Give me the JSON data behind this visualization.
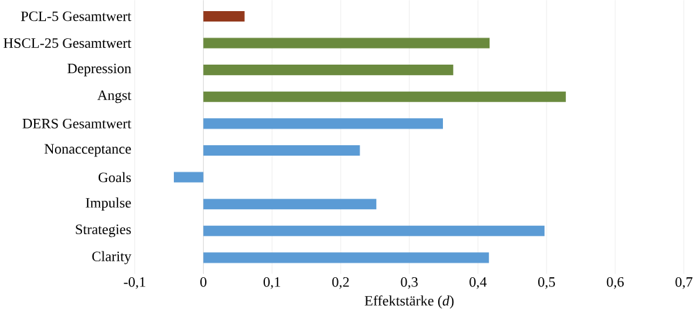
{
  "chart_data": {
    "type": "bar",
    "orientation": "horizontal",
    "xlabel": "Effektstärke (*d*)",
    "categories": [
      "PCL-5 Gesamtwert",
      "HSCL-25 Gesamtwert",
      "Depression",
      "Angst",
      "DERS Gesamtwert",
      "Nonacceptance",
      "Goals",
      "Impulse",
      "Strategies",
      "Clarity"
    ],
    "values": [
      0.06,
      0.417,
      0.364,
      0.528,
      0.349,
      0.228,
      -0.043,
      0.252,
      0.497,
      0.416
    ],
    "colors": [
      "#93391c",
      "#6a8a3e",
      "#6a8a3e",
      "#6a8a3e",
      "#5b9bd5",
      "#5b9bd5",
      "#5b9bd5",
      "#5b9bd5",
      "#5b9bd5",
      "#5b9bd5"
    ],
    "xlim": [
      -0.1,
      0.7
    ],
    "xticks": [
      {
        "value": -0.1,
        "label": "-0,1"
      },
      0,
      {
        "value": 0.1,
        "label": "0,1"
      },
      {
        "value": 0.2,
        "label": "0,2"
      },
      {
        "value": 0.3,
        "label": "0,3"
      },
      {
        "value": 0.4,
        "label": "0,4"
      },
      {
        "value": 0.5,
        "label": "0,5"
      },
      {
        "value": 0.6,
        "label": "0,6"
      },
      {
        "value": 0.7,
        "label": "0,7"
      }
    ],
    "grid": "x"
  }
}
